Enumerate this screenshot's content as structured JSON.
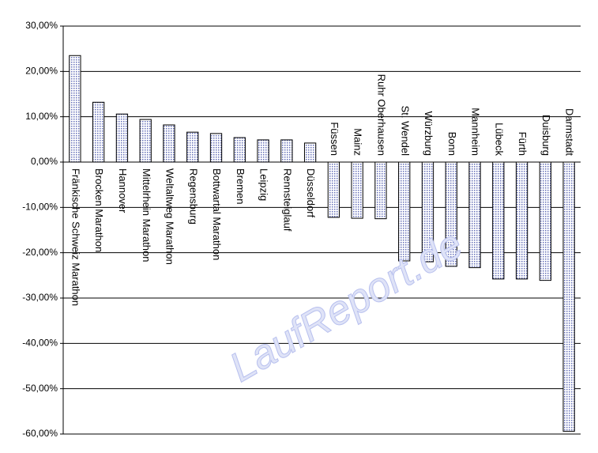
{
  "chart_data": {
    "type": "bar",
    "categories": [
      "Fränkische Schweiz Marathon",
      "Brocken Marathon",
      "Hannover",
      "Mittelrhein Marathon",
      "Weltaltweg Marathon",
      "Regensburg",
      "Bottwartal Marathon",
      "Bremen",
      "Leipzig",
      "Rennsteiglauf",
      "Düsseldorf",
      "Füssen",
      "Mainz",
      "Ruhr Oberhausen",
      "St. Wendel",
      "Würzburg",
      "Bonn",
      "Mannheim",
      "Lübeck",
      "Fürth",
      "Duisburg",
      "Darmstadt"
    ],
    "values": [
      23.5,
      13.2,
      10.6,
      9.4,
      8.2,
      6.6,
      6.3,
      5.4,
      4.9,
      4.9,
      4.2,
      -12.2,
      -12.4,
      -12.5,
      -21.8,
      -22.0,
      -23.0,
      -23.3,
      -25.8,
      -25.8,
      -26.1,
      -59.4
    ],
    "color": "#c8cce8",
    "ylim": [
      -60,
      30
    ],
    "yticks": [
      {
        "value": 30,
        "label": "30,00%"
      },
      {
        "value": 20,
        "label": "20,00%"
      },
      {
        "value": 10,
        "label": "10,00%"
      },
      {
        "value": 0,
        "label": "0,00%"
      },
      {
        "value": -10,
        "label": "-10,00%"
      },
      {
        "value": -20,
        "label": "-20,00%"
      },
      {
        "value": -30,
        "label": "-30,00%"
      },
      {
        "value": -40,
        "label": "-40,00%"
      },
      {
        "value": -50,
        "label": "-50,00%"
      },
      {
        "value": -60,
        "label": "-60,00%"
      }
    ],
    "grid": true,
    "watermark": "LaufReport.de"
  }
}
